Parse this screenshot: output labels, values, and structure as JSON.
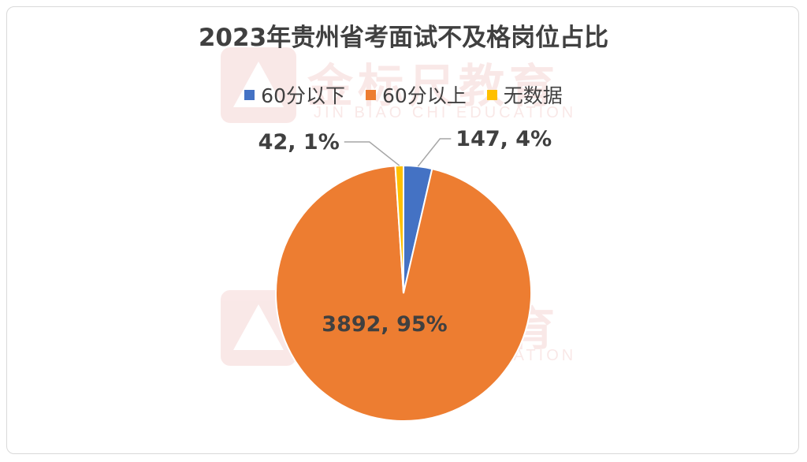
{
  "chart_data": {
    "type": "pie",
    "title": "2023年贵州省考面试不及格岗位占比",
    "legend_position": "top",
    "slices": [
      {
        "name": "60分以下",
        "value": 147,
        "percent": "4%",
        "label": "147, 4%",
        "color": "#4472c4"
      },
      {
        "name": "60分以上",
        "value": 3892,
        "percent": "95%",
        "label": "3892, 95%",
        "color": "#ed7d31"
      },
      {
        "name": "无数据",
        "value": 42,
        "percent": "1%",
        "label": "42, 1%",
        "color": "#ffc000"
      }
    ]
  },
  "watermark": {
    "text": "金标尺教育",
    "subtext": "JIN BIAO CHI  EDUCATION"
  }
}
